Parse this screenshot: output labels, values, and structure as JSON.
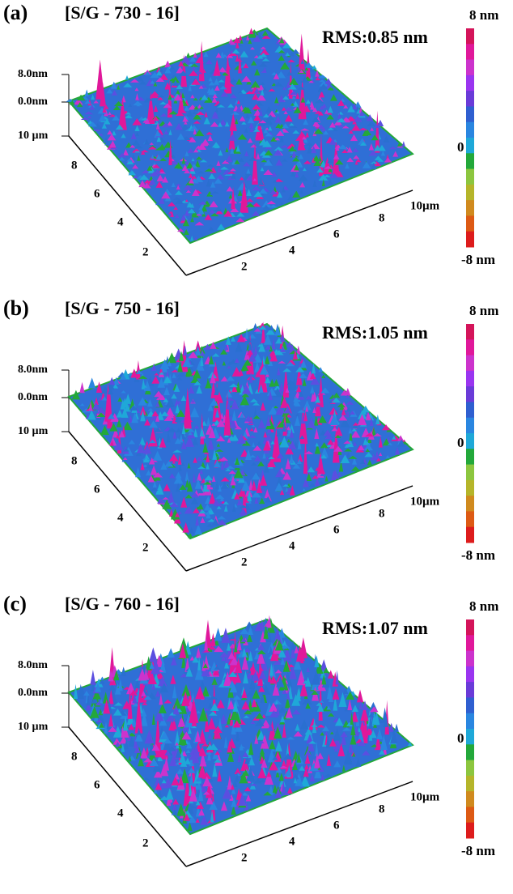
{
  "panels": [
    {
      "label": "(a)",
      "title": "[S/G - 730 - 16]",
      "rms": "RMS:0.85 nm",
      "z_labels": [
        "8.0nm",
        "0.0nm",
        "10 µm"
      ],
      "y_ticks": [
        "8",
        "6",
        "4",
        "2"
      ],
      "x_ticks": [
        "2",
        "4",
        "6",
        "8",
        "10µm"
      ],
      "colorbar": [
        "8 nm",
        "0",
        "-8 nm"
      ]
    },
    {
      "label": "(b)",
      "title": "[S/G - 750 - 16]",
      "rms": "RMS:1.05 nm",
      "z_labels": [
        "8.0nm",
        "0.0nm",
        "10 µm"
      ],
      "y_ticks": [
        "8",
        "6",
        "4",
        "2"
      ],
      "x_ticks": [
        "2",
        "4",
        "6",
        "8",
        "10µm"
      ],
      "colorbar": [
        "8 nm",
        "0",
        "-8 nm"
      ]
    },
    {
      "label": "(c)",
      "title": "[S/G - 760 - 16]",
      "rms": "RMS:1.07 nm",
      "z_labels": [
        "8.0nm",
        "0.0nm",
        "10 µm"
      ],
      "y_ticks": [
        "8",
        "6",
        "4",
        "2"
      ],
      "x_ticks": [
        "2",
        "4",
        "6",
        "8",
        "10µm"
      ],
      "colorbar": [
        "8 nm",
        "0",
        "-8 nm"
      ]
    }
  ]
}
